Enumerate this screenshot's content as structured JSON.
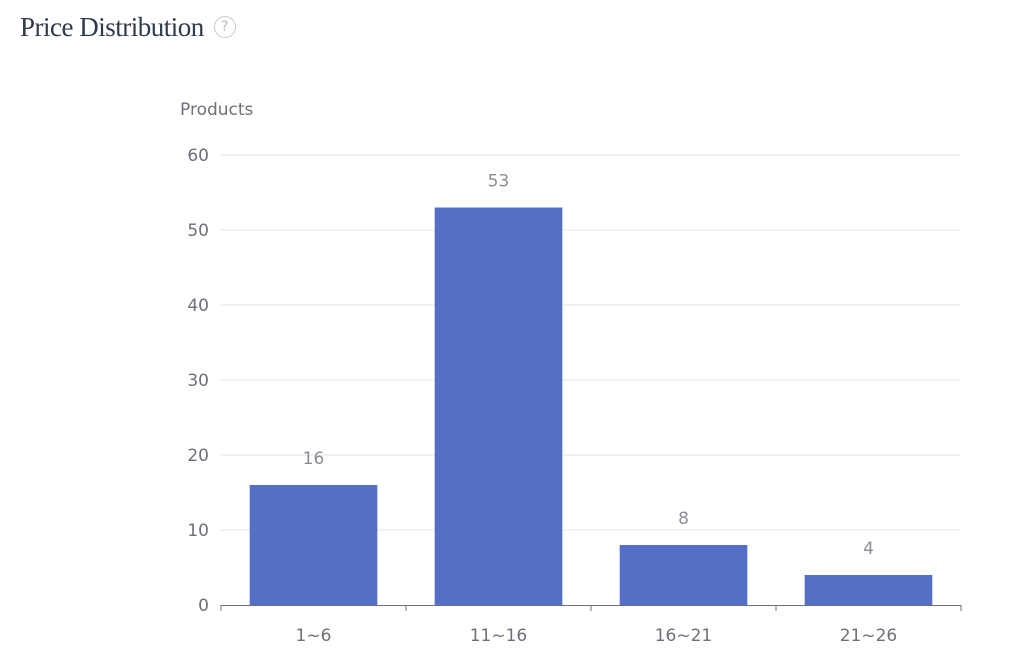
{
  "header": {
    "title": "Price Distribution",
    "help_icon": "question-circle-icon",
    "help_glyph": "?"
  },
  "colors": {
    "bar": "#5470c6",
    "grid": "#e3e6ef",
    "axis": "#6e7079"
  },
  "chart_data": {
    "type": "bar",
    "title": "Price Distribution",
    "xlabel": "",
    "ylabel": "Products",
    "categories": [
      "1~6",
      "11~16",
      "16~21",
      "21~26"
    ],
    "values": [
      16,
      53,
      8,
      4
    ],
    "data_labels": [
      "16",
      "53",
      "8",
      "4"
    ],
    "ylim": [
      0,
      60
    ],
    "yticks": [
      0,
      10,
      20,
      30,
      40,
      50,
      60
    ],
    "grid": true,
    "legend": "none"
  }
}
